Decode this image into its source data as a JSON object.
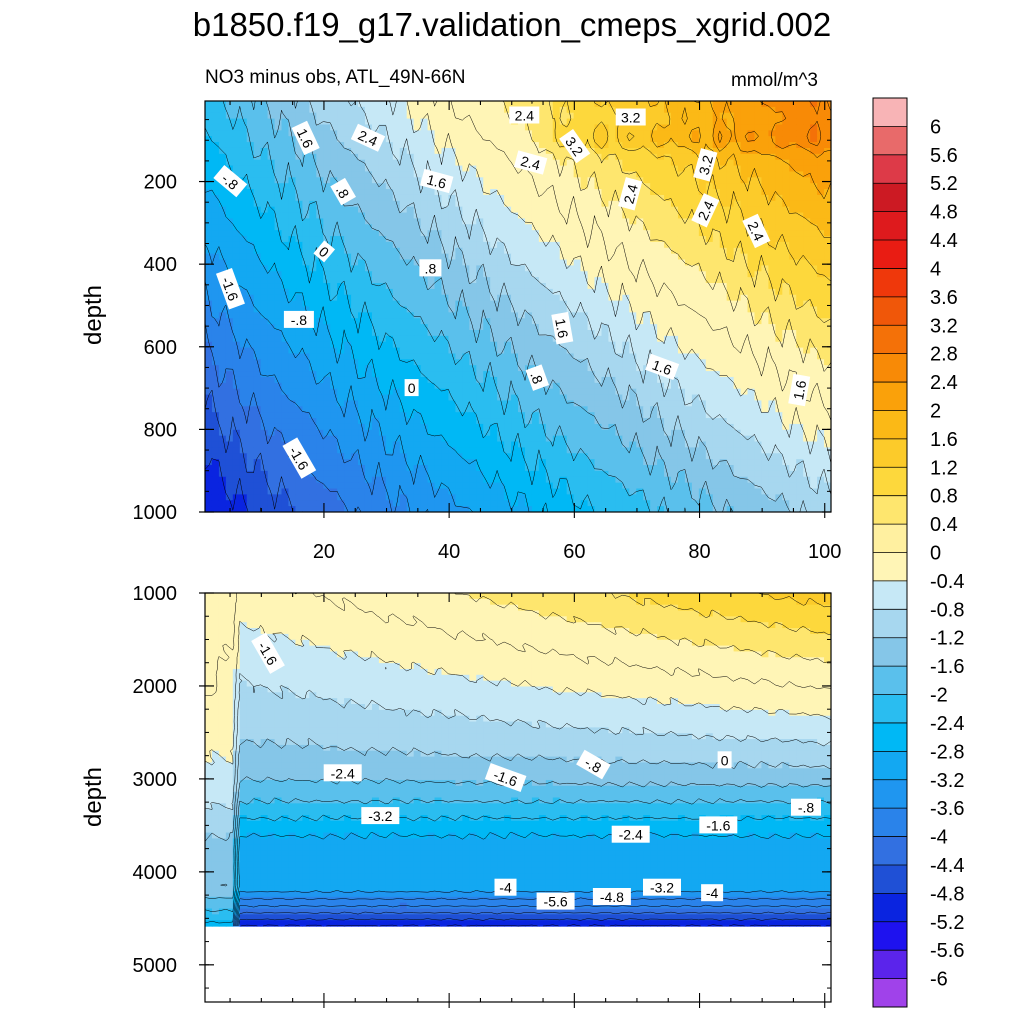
{
  "title": "b1850.f19_g17.validation_cmeps_xgrid.002",
  "subtitle_left": "NO3 minus obs, ATL_49N-66N",
  "subtitle_right": "mmol/m^3",
  "colors": {
    "levels": [
      "#a042ea",
      "#5b24eb",
      "#1e12ef",
      "#0a24e0",
      "#1f50d6",
      "#3270e1",
      "#2a83ea",
      "#1f96f0",
      "#13a8f2",
      "#00b8f5",
      "#2abdf0",
      "#5ac0ec",
      "#85c6e8",
      "#a7d7ef",
      "#c6e8f6",
      "#fff5b6",
      "#fff0a0",
      "#fee66e",
      "#fdd83c",
      "#fccb2a",
      "#fbb916",
      "#faa10a",
      "#f88a06",
      "#f47108",
      "#f05709",
      "#ef380b",
      "#e91c13",
      "#de1a1d",
      "#cc1a23",
      "#dd3a48",
      "#e86a6a",
      "#f8b4b6"
    ],
    "contour_line": "#000000"
  },
  "chart_data": [
    {
      "type": "contour",
      "name": "upper-panel",
      "xlabel": "",
      "ylabel": "depth",
      "xlim": [
        1,
        101
      ],
      "ylim": [
        1000,
        5
      ],
      "xticks": [
        "20",
        "40",
        "60",
        "80",
        "100"
      ],
      "yticks": [
        "200",
        "400",
        "600",
        "800",
        "1000"
      ],
      "contour_labels": [
        {
          "text": "2.4",
          "x": 52,
          "y": 40,
          "rot": 0
        },
        {
          "text": "3.2",
          "x": 69,
          "y": 45,
          "rot": 0
        },
        {
          "text": "1.6",
          "x": 17,
          "y": 95,
          "rot": 65
        },
        {
          "text": "2.4",
          "x": 27,
          "y": 95,
          "rot": 25
        },
        {
          "text": "3.2",
          "x": 60,
          "y": 115,
          "rot": 55
        },
        {
          "text": "3.2",
          "x": 81,
          "y": 160,
          "rot": -75
        },
        {
          "text": "2.4",
          "x": 53,
          "y": 155,
          "rot": 15
        },
        {
          "text": "1.6",
          "x": 38,
          "y": 200,
          "rot": 15
        },
        {
          "text": "-.8",
          "x": 5,
          "y": 200,
          "rot": 40
        },
        {
          "text": ".8",
          "x": 23,
          "y": 225,
          "rot": 60
        },
        {
          "text": "2.4",
          "x": 69,
          "y": 230,
          "rot": -75
        },
        {
          "text": "2.4",
          "x": 81,
          "y": 270,
          "rot": -65
        },
        {
          "text": "2.4",
          "x": 89,
          "y": 320,
          "rot": 65
        },
        {
          "text": "0",
          "x": 20,
          "y": 370,
          "rot": 40
        },
        {
          "text": ".8",
          "x": 37,
          "y": 410,
          "rot": 0
        },
        {
          "text": "-1.6",
          "x": 5,
          "y": 460,
          "rot": 70
        },
        {
          "text": "-.8",
          "x": 16,
          "y": 535,
          "rot": 0
        },
        {
          "text": "1.6",
          "x": 58,
          "y": 555,
          "rot": 80
        },
        {
          "text": "1.6",
          "x": 74,
          "y": 650,
          "rot": 20
        },
        {
          "text": ".8",
          "x": 54,
          "y": 675,
          "rot": 70
        },
        {
          "text": "0",
          "x": 34,
          "y": 700,
          "rot": 0
        },
        {
          "text": "1.6",
          "x": 96,
          "y": 705,
          "rot": -80
        },
        {
          "text": "-1.6",
          "x": 16,
          "y": 870,
          "rot": 60
        }
      ]
    },
    {
      "type": "contour",
      "name": "lower-panel",
      "xlabel": "",
      "ylabel": "depth",
      "xlim": [
        1,
        101
      ],
      "ylim": [
        5400,
        1000
      ],
      "xticks": [],
      "yticks": [
        "1000",
        "2000",
        "3000",
        "4000",
        "5000"
      ],
      "contour_labels": [
        {
          "text": "-1.6",
          "x": 11,
          "y": 1650,
          "rot": 60
        },
        {
          "text": "0",
          "x": 84,
          "y": 2800,
          "rot": 0
        },
        {
          "text": "-.8",
          "x": 63,
          "y": 2850,
          "rot": 30
        },
        {
          "text": "-2.4",
          "x": 23,
          "y": 2940,
          "rot": 0
        },
        {
          "text": "-1.6",
          "x": 49,
          "y": 2990,
          "rot": 20
        },
        {
          "text": "-.8",
          "x": 97,
          "y": 3310,
          "rot": 0
        },
        {
          "text": "-3.2",
          "x": 29,
          "y": 3400,
          "rot": 0
        },
        {
          "text": "-1.6",
          "x": 83,
          "y": 3500,
          "rot": 0
        },
        {
          "text": "-2.4",
          "x": 69,
          "y": 3600,
          "rot": 0
        },
        {
          "text": "-4",
          "x": 49,
          "y": 4170,
          "rot": 0
        },
        {
          "text": "-3.2",
          "x": 74,
          "y": 4170,
          "rot": 0
        },
        {
          "text": "-4",
          "x": 82,
          "y": 4230,
          "rot": 0
        },
        {
          "text": "-4.8",
          "x": 66,
          "y": 4270,
          "rot": 0
        },
        {
          "text": "-5.6",
          "x": 57,
          "y": 4320,
          "rot": 0
        }
      ]
    }
  ],
  "colorbar": {
    "labels": [
      "6",
      "5.6",
      "5.2",
      "4.8",
      "4.4",
      "4",
      "3.6",
      "3.2",
      "2.8",
      "2.4",
      "2",
      "1.6",
      "1.2",
      "0.8",
      "0.4",
      "0",
      "-0.4",
      "-0.8",
      "-1.2",
      "-1.6",
      "-2",
      "-2.4",
      "-2.8",
      "-3.2",
      "-3.6",
      "-4",
      "-4.4",
      "-4.8",
      "-5.2",
      "-5.6",
      "-6"
    ]
  }
}
